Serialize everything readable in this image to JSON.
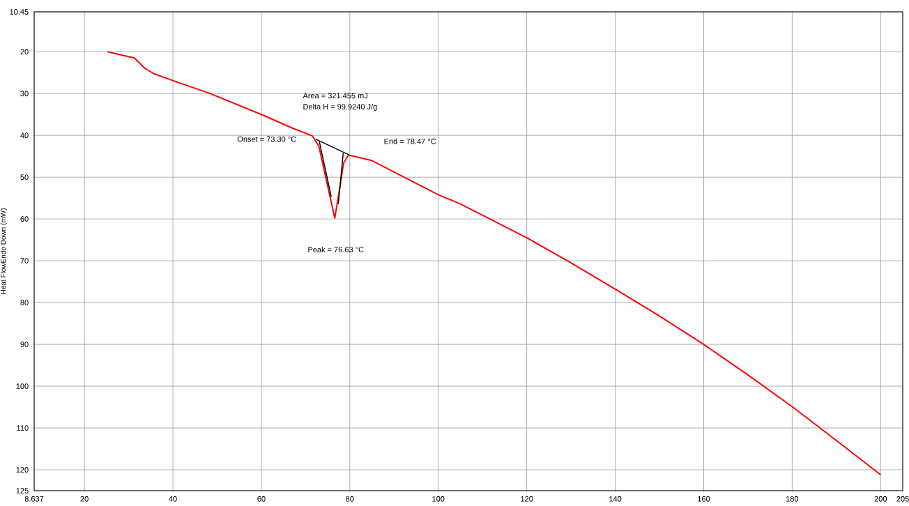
{
  "chart_data": {
    "type": "line",
    "ylabel": "Heat FlowEndo Down (mW)",
    "xlim": [
      8.637,
      205
    ],
    "ylim": [
      125,
      10.45
    ],
    "xticks": [
      8.637,
      20,
      40,
      60,
      80,
      100,
      120,
      140,
      160,
      180,
      200,
      205
    ],
    "yticks": [
      10.45,
      20,
      30,
      40,
      50,
      60,
      70,
      80,
      90,
      100,
      110,
      120,
      125
    ],
    "grid": true,
    "line_style": "solid",
    "marker": "none",
    "annotations": [
      "Area = 321.455 mJ",
      "Delta H = 99.9240 J/g",
      "Onset = 73.30 °C",
      "End = 78.47 °C",
      "Peak = 76.63 °C"
    ],
    "series": [
      {
        "color": "#ff0000",
        "x": [
          25.2,
          31.3,
          33.7,
          35.6,
          40,
          48.2,
          60,
          67.1,
          71.5,
          73,
          74.5,
          76.6,
          77.7,
          78.6,
          79.7,
          84.9,
          100,
          105,
          120,
          130,
          140,
          150,
          160,
          170,
          180,
          190,
          200
        ],
        "values": [
          20,
          21.5,
          24,
          25.2,
          26.9,
          29.9,
          35,
          38.3,
          40.1,
          42.6,
          49.8,
          59.8,
          52.7,
          46.6,
          44.7,
          46,
          54.2,
          56.4,
          64.5,
          70.5,
          76.8,
          83.2,
          90,
          97.3,
          104.9,
          113,
          121.2
        ]
      },
      {
        "color": "#000000",
        "x": [
          72.3,
          79.7
        ],
        "values": [
          40.9,
          44.6
        ]
      },
      {
        "color": "#000000",
        "x": [
          73.1,
          75.8
        ],
        "values": [
          41.4,
          54.7
        ]
      },
      {
        "color": "#000000",
        "x": [
          77.4,
          78.5
        ],
        "values": [
          56.4,
          44.3
        ]
      }
    ]
  }
}
